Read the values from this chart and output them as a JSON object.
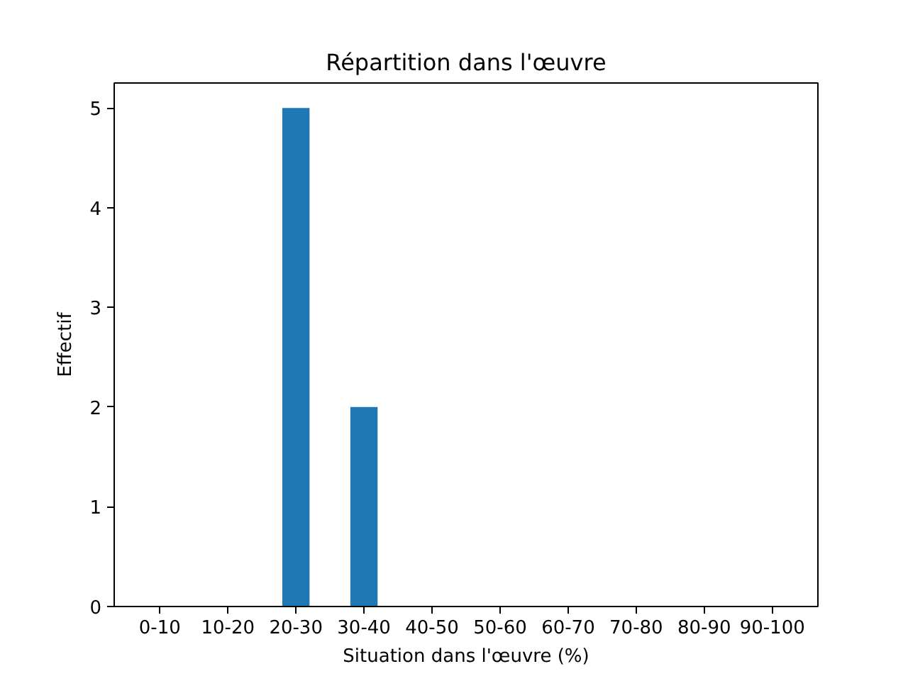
{
  "chart_data": {
    "type": "bar",
    "title": "Répartition dans l'œuvre",
    "xlabel": "Situation dans l'œuvre (%)",
    "ylabel": "Effectif",
    "categories": [
      "0-10",
      "10-20",
      "20-30",
      "30-40",
      "40-50",
      "50-60",
      "60-70",
      "70-80",
      "80-90",
      "90-100"
    ],
    "values": [
      0,
      0,
      5,
      2,
      0,
      0,
      0,
      0,
      0,
      0
    ],
    "color": "#1f77b4",
    "ylim": [
      0,
      5.25
    ],
    "yticks": [
      0,
      1,
      2,
      3,
      4,
      5
    ],
    "grid": false,
    "legend": false
  }
}
